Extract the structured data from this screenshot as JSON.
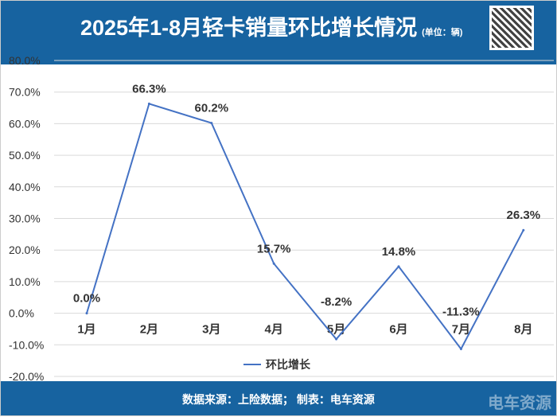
{
  "header": {
    "title": "2025年1-8月轻卡销量环比增长情况",
    "unit": "(单位：辆)"
  },
  "footer": {
    "source": "数据来源：上险数据；  制表：电车资源",
    "watermark": "电车资源"
  },
  "colors": {
    "header": "#1763a0",
    "line": "#4472c4"
  },
  "chart_data": {
    "type": "line",
    "title": "2025年1-8月轻卡销量环比增长情况",
    "categories": [
      "1月",
      "2月",
      "3月",
      "4月",
      "5月",
      "6月",
      "7月",
      "8月"
    ],
    "series": [
      {
        "name": "环比增长",
        "values": [
          0.0,
          66.3,
          60.2,
          15.7,
          -8.2,
          14.8,
          -11.3,
          26.3
        ]
      }
    ],
    "data_labels": [
      "0.0%",
      "66.3%",
      "60.2%",
      "15.7%",
      "-8.2%",
      "14.8%",
      "-11.3%",
      "26.3%"
    ],
    "yticks": [
      "80.0%",
      "70.0%",
      "60.0%",
      "50.0%",
      "40.0%",
      "30.0%",
      "20.0%",
      "10.0%",
      "0.0%",
      "-10.0%",
      "-20.0%"
    ],
    "ylim": [
      -20,
      80
    ],
    "grid": true,
    "legend": "bottom"
  }
}
